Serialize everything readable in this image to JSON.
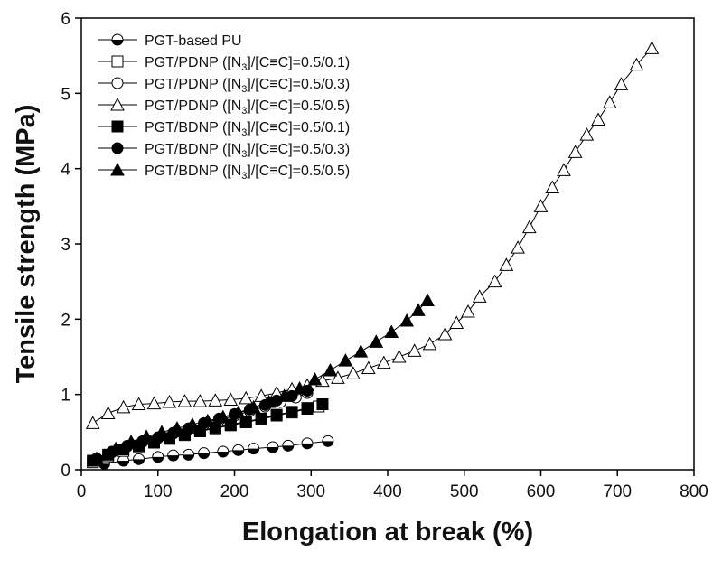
{
  "chart_data": {
    "type": "line",
    "xlabel": "Elongation at break (%)",
    "ylabel": "Tensile strength (MPa)",
    "xlim": [
      0,
      800
    ],
    "xticks": [
      0,
      100,
      200,
      300,
      400,
      500,
      600,
      700,
      800
    ],
    "ylim": [
      0,
      6
    ],
    "yticks": [
      0,
      1,
      2,
      3,
      4,
      5,
      6
    ],
    "legend": "upper left",
    "series": [
      {
        "name": "PGT-based PU",
        "color": "#000000",
        "marker": "half-circle",
        "x": [
          30,
          55,
          75,
          100,
          120,
          140,
          160,
          185,
          205,
          225,
          250,
          270,
          295,
          322
        ],
        "values": [
          0.08,
          0.12,
          0.14,
          0.17,
          0.19,
          0.2,
          0.22,
          0.24,
          0.26,
          0.28,
          0.3,
          0.32,
          0.35,
          0.38
        ]
      },
      {
        "name": "PGT/PDNP ([N3]/[C≡C]=0.5/0.1)",
        "color": "#000000",
        "marker": "open-square",
        "x": [
          15,
          35,
          55,
          75,
          95,
          115,
          135,
          155,
          175,
          195,
          215,
          235,
          255,
          275,
          295,
          310
        ],
        "values": [
          0.1,
          0.18,
          0.25,
          0.31,
          0.36,
          0.41,
          0.46,
          0.51,
          0.55,
          0.59,
          0.63,
          0.67,
          0.72,
          0.76,
          0.81,
          0.84
        ]
      },
      {
        "name": "PGT/PDNP ([N3]/[C≡C]=0.5/0.3)",
        "color": "#000000",
        "marker": "open-circle",
        "x": [
          20,
          40,
          60,
          80,
          100,
          120,
          140,
          160,
          180,
          200,
          220,
          240,
          260,
          280,
          295
        ],
        "values": [
          0.14,
          0.23,
          0.31,
          0.37,
          0.42,
          0.48,
          0.54,
          0.6,
          0.66,
          0.72,
          0.78,
          0.84,
          0.9,
          0.96,
          1.02
        ]
      },
      {
        "name": "PGT/PDNP ([N3]/[C≡C]=0.5/0.5)",
        "color": "#000000",
        "marker": "open-triangle",
        "x": [
          15,
          35,
          55,
          75,
          95,
          115,
          135,
          155,
          175,
          195,
          215,
          235,
          255,
          275,
          295,
          315,
          335,
          355,
          375,
          395,
          415,
          435,
          455,
          475,
          490,
          505,
          520,
          540,
          555,
          570,
          585,
          600,
          615,
          630,
          645,
          660,
          675,
          690,
          705,
          725,
          745
        ],
        "values": [
          0.62,
          0.75,
          0.83,
          0.87,
          0.88,
          0.9,
          0.91,
          0.91,
          0.92,
          0.93,
          0.95,
          0.98,
          1.02,
          1.07,
          1.12,
          1.18,
          1.22,
          1.28,
          1.35,
          1.42,
          1.5,
          1.58,
          1.67,
          1.8,
          1.95,
          2.1,
          2.3,
          2.5,
          2.72,
          2.95,
          3.22,
          3.5,
          3.75,
          3.98,
          4.22,
          4.45,
          4.65,
          4.88,
          5.12,
          5.38,
          5.6
        ]
      },
      {
        "name": "PGT/BDNP ([N3]/[C≡C]=0.5/0.1)",
        "color": "#000000",
        "marker": "filled-square",
        "x": [
          15,
          35,
          55,
          75,
          95,
          115,
          135,
          155,
          175,
          195,
          215,
          235,
          255,
          275,
          295,
          315
        ],
        "values": [
          0.12,
          0.2,
          0.27,
          0.32,
          0.37,
          0.42,
          0.47,
          0.52,
          0.56,
          0.6,
          0.64,
          0.68,
          0.73,
          0.77,
          0.82,
          0.87
        ]
      },
      {
        "name": "PGT/BDNP ([N3]/[C≡C]=0.5/0.3)",
        "color": "#000000",
        "marker": "filled-circle",
        "x": [
          20,
          40,
          60,
          80,
          100,
          120,
          140,
          160,
          180,
          200,
          220,
          240,
          255,
          275,
          295
        ],
        "values": [
          0.15,
          0.24,
          0.32,
          0.38,
          0.43,
          0.49,
          0.55,
          0.62,
          0.68,
          0.74,
          0.8,
          0.86,
          0.92,
          0.98,
          1.05
        ]
      },
      {
        "name": "PGT/BDNP ([N3]/[C≡C]=0.5/0.5)",
        "color": "#000000",
        "marker": "filled-triangle",
        "x": [
          20,
          45,
          65,
          85,
          105,
          125,
          145,
          165,
          185,
          205,
          225,
          245,
          265,
          285,
          305,
          325,
          345,
          365,
          385,
          405,
          425,
          440,
          452
        ],
        "values": [
          0.15,
          0.28,
          0.37,
          0.44,
          0.5,
          0.55,
          0.6,
          0.65,
          0.7,
          0.76,
          0.83,
          0.9,
          0.98,
          1.08,
          1.2,
          1.32,
          1.45,
          1.57,
          1.7,
          1.83,
          1.98,
          2.12,
          2.25
        ]
      }
    ]
  }
}
